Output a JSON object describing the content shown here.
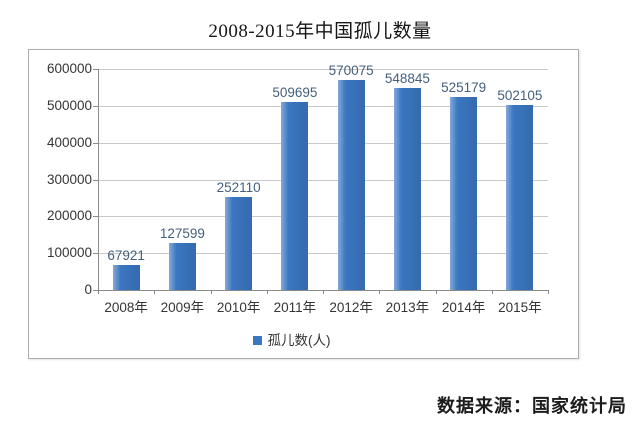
{
  "source_note": "数据来源：国家统计局",
  "chart_data": {
    "type": "bar",
    "title": "2008-2015年中国孤儿数量",
    "categories": [
      "2008年",
      "2009年",
      "2010年",
      "2011年",
      "2012年",
      "2013年",
      "2014年",
      "2015年"
    ],
    "values": [
      67921,
      127599,
      252110,
      509695,
      570075,
      548845,
      525179,
      502105
    ],
    "series_label": "孤儿数(人)",
    "xlabel": "",
    "ylabel": "",
    "ylim": [
      0,
      600000
    ],
    "ytick_step": 100000,
    "ytick_labels": [
      "0",
      "100000",
      "200000",
      "300000",
      "400000",
      "500000",
      "600000"
    ],
    "bar_color": "#3a76c1",
    "gridline_color": "#c9c9c9",
    "axis_color": "#8a8a8a",
    "data_label_color": "#44607e",
    "grid": true,
    "data_labels": true,
    "legend_position": "bottom"
  }
}
